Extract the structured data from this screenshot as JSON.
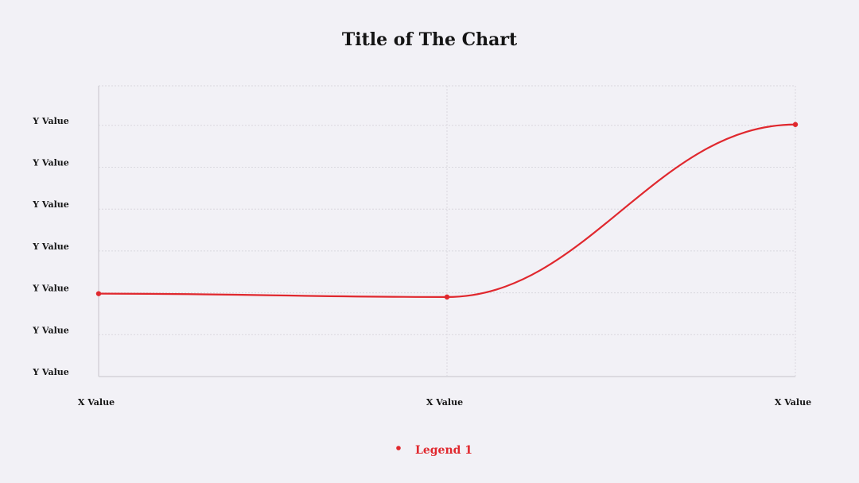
{
  "chart_data": {
    "type": "line",
    "title": "Title of The Chart",
    "xlabel": "",
    "ylabel": "",
    "x_tick_labels": [
      "X Value",
      "X Value",
      "X Value"
    ],
    "y_tick_labels": [
      "Y Value",
      "Y Value",
      "Y Value",
      "Y Value",
      "Y Value",
      "Y Value",
      "Y Value"
    ],
    "ylim": [
      0,
      6
    ],
    "grid": true,
    "legend_position": "bottom-center",
    "series": [
      {
        "name": "Legend 1",
        "color": "#e0282e",
        "smooth": true,
        "values": [
          1.98,
          1.9,
          6.02
        ]
      }
    ]
  }
}
